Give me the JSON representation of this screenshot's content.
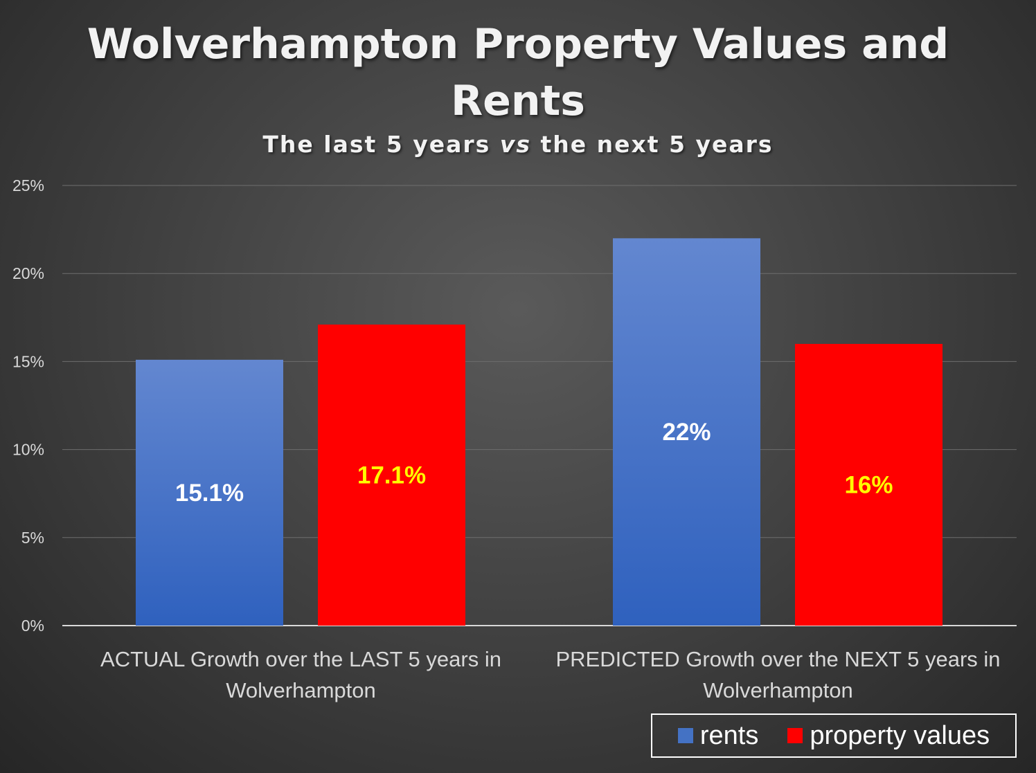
{
  "title_line1": "Wolverhampton Property Values and",
  "title_line2": "Rents",
  "subtitle_pre": "The last 5 years ",
  "subtitle_em": "vs",
  "subtitle_post": " the next 5 years",
  "colors": {
    "rents": "#4472c4",
    "property_values": "#ff0000",
    "rents_label": "#ffffff",
    "property_values_label": "#ffff00"
  },
  "chart_data": {
    "type": "bar",
    "categories": [
      [
        "ACTUAL Growth over the LAST 5 years in",
        "Wolverhampton"
      ],
      [
        "PREDICTED Growth over the NEXT 5 years in",
        "Wolverhampton"
      ]
    ],
    "series": [
      {
        "name": "rents",
        "values": [
          15.1,
          22
        ],
        "labels": [
          "15.1%",
          "22%"
        ]
      },
      {
        "name": "property values",
        "values": [
          17.1,
          16
        ],
        "labels": [
          "17.1%",
          "16%"
        ]
      }
    ],
    "ylim": [
      0,
      25
    ],
    "yticks": [
      0,
      5,
      10,
      15,
      20,
      25
    ],
    "ytick_labels": [
      "0%",
      "5%",
      "10%",
      "15%",
      "20%",
      "25%"
    ],
    "grid": true,
    "legend_position": "bottom-right"
  }
}
